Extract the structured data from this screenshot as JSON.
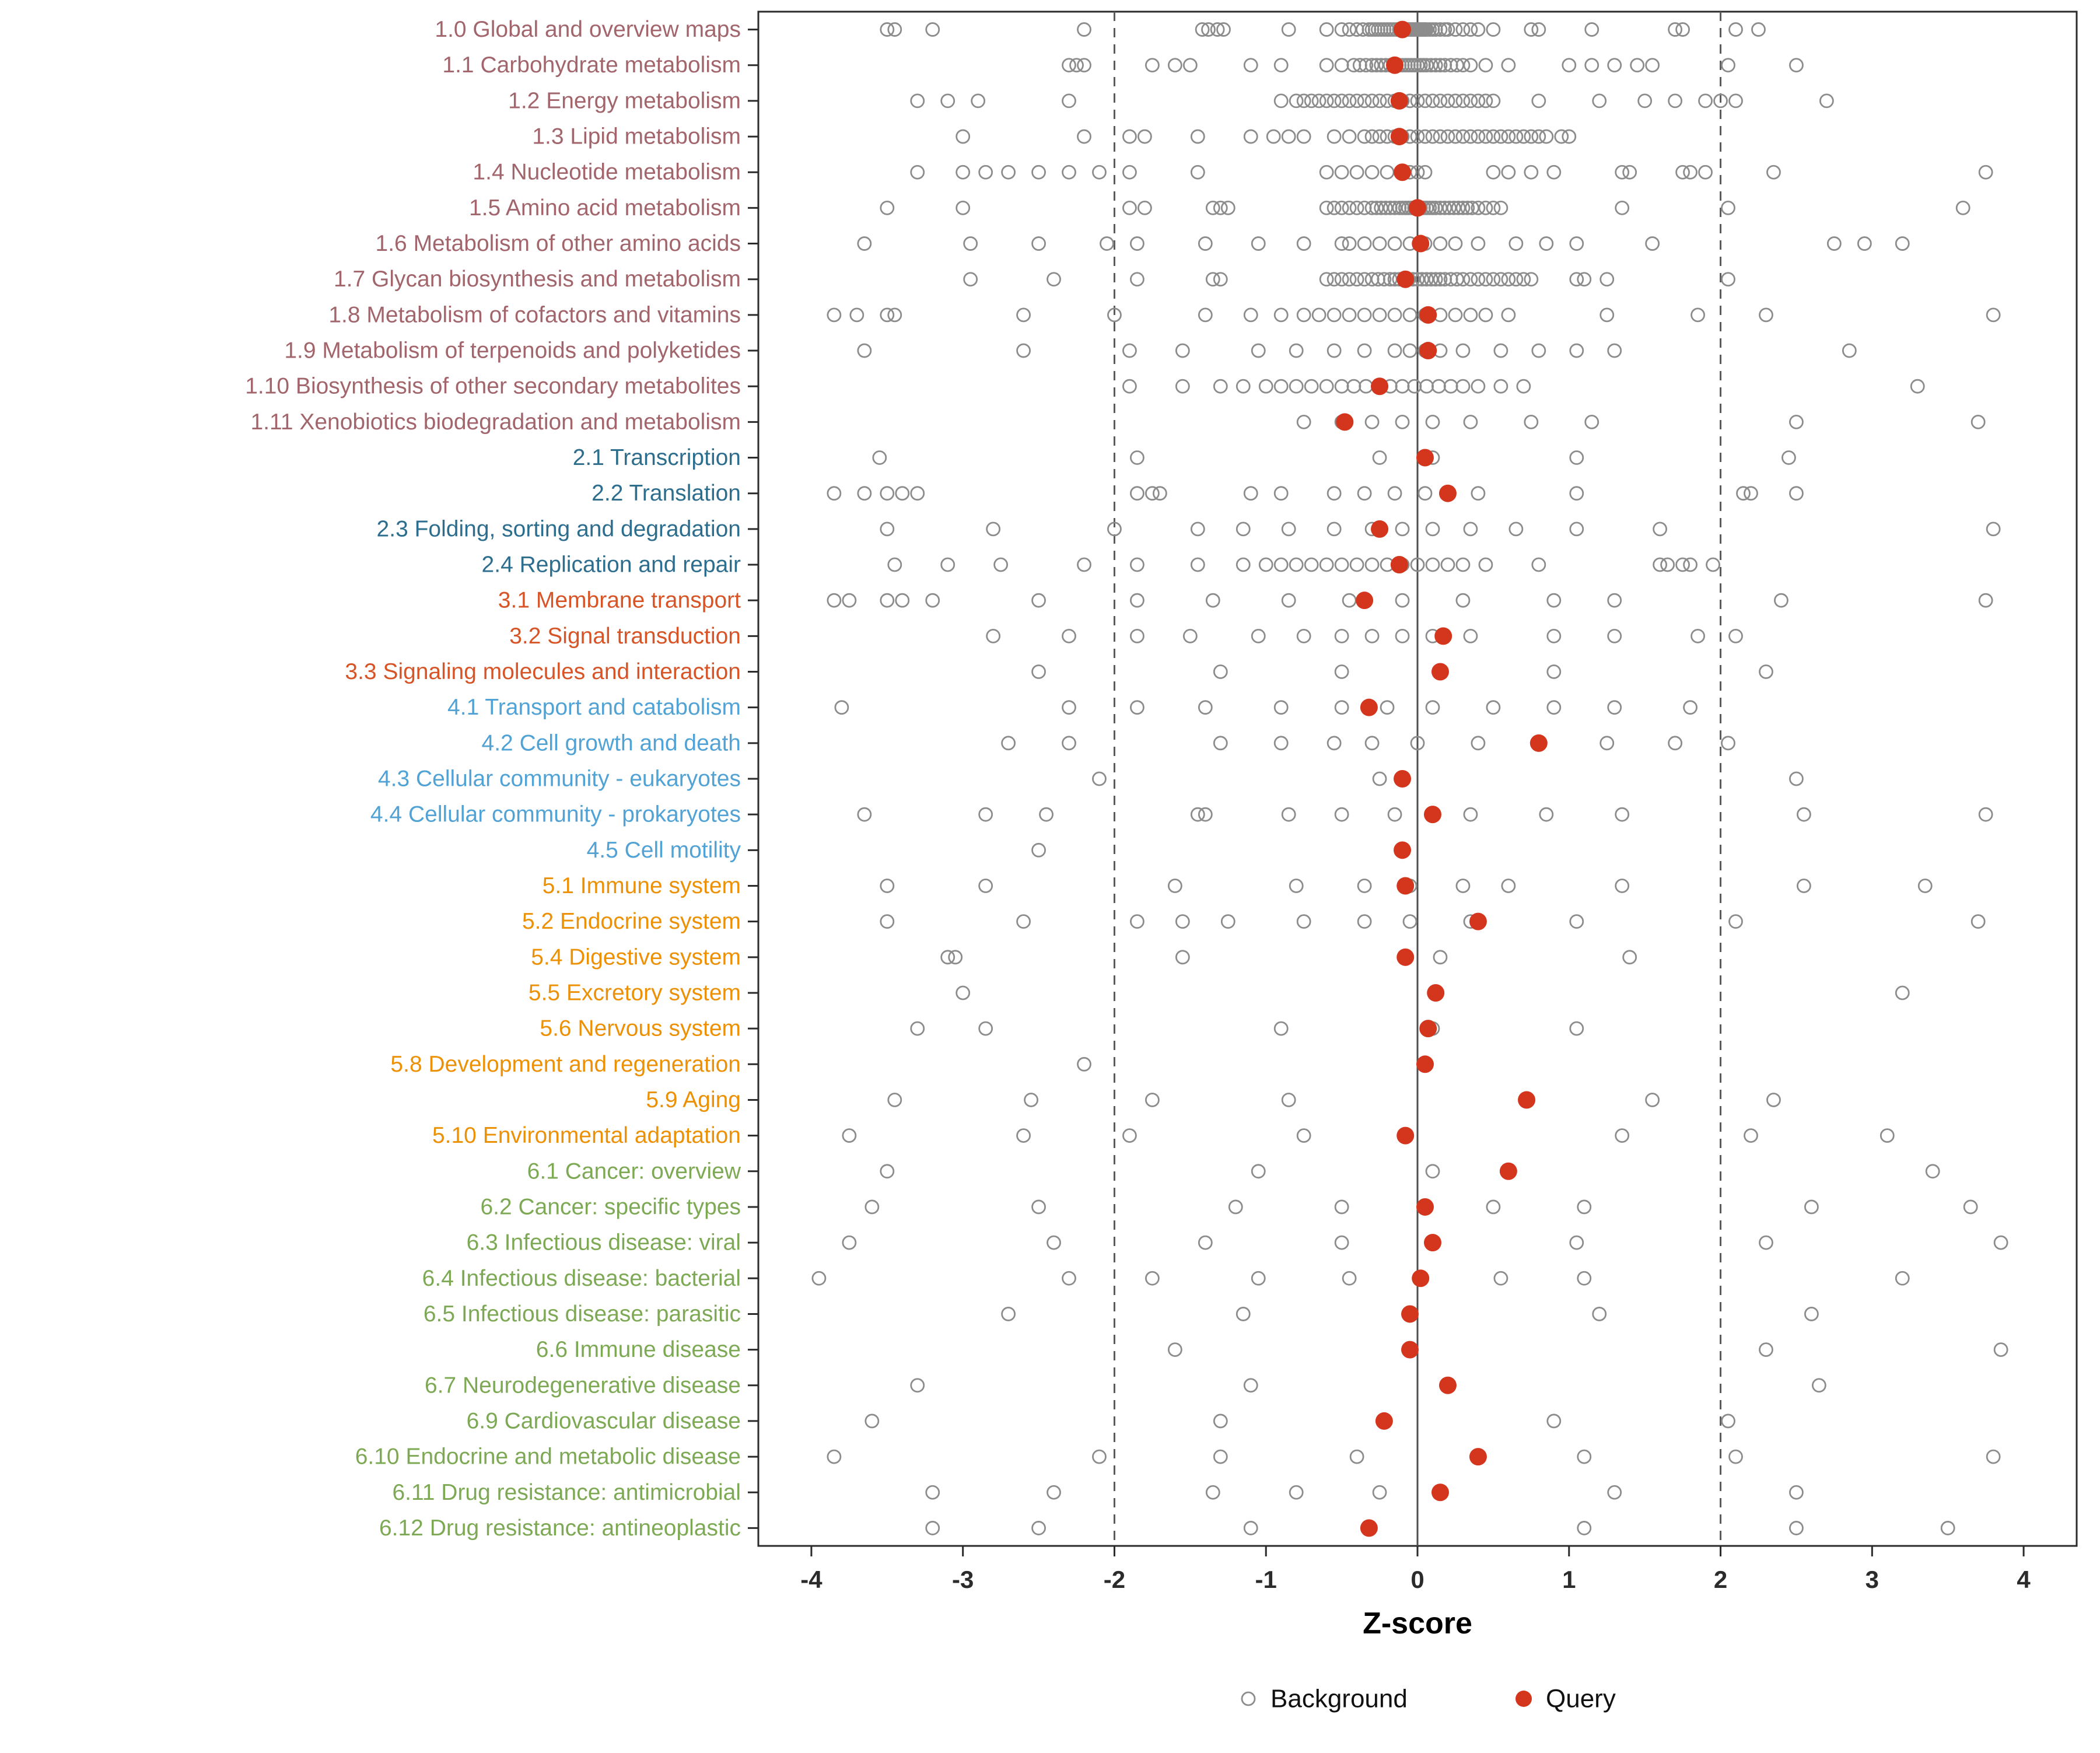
{
  "colors": {
    "background_stroke": "#8C8C8C",
    "query_fill": "#D4361D",
    "panel_border": "#2b2b2b",
    "axis_tick": "#2b2b2b",
    "zero_line": "#4d4d4d",
    "dashed_line": "#5a5a5a",
    "group_metabolism": "#A2656C",
    "group_genetic_info": "#2D6D8E",
    "group_env_info": "#D75426",
    "group_cellular": "#51A2D5",
    "group_organismal": "#EC9106",
    "group_disease": "#7DA954"
  },
  "chart_data": {
    "type": "scatter",
    "title": "",
    "xlabel": "Z-score",
    "ylabel": "",
    "xlim": [
      -4.35,
      4.35
    ],
    "x_ticks": [
      -4,
      -3,
      -2,
      -1,
      0,
      1,
      2,
      3,
      4
    ],
    "reference_lines": {
      "solid": [
        0
      ],
      "dashed": [
        -2,
        2
      ]
    },
    "legend_labels": [
      "Background",
      "Query"
    ],
    "legend_position": "bottom",
    "grid": false,
    "rows": [
      {
        "label": "1.0 Global and overview maps",
        "group": "metabolism",
        "query": -0.1,
        "background": [
          -3.5,
          -3.45,
          -3.2,
          -2.2,
          -1.42,
          -1.38,
          -1.32,
          -1.28,
          -0.85,
          -0.6,
          -0.5,
          -0.45,
          -0.4,
          -0.36,
          -0.32,
          -0.3,
          -0.28,
          -0.26,
          -0.24,
          -0.22,
          -0.2,
          -0.18,
          -0.16,
          -0.14,
          -0.12,
          -0.1,
          -0.08,
          -0.06,
          -0.05,
          -0.04,
          -0.03,
          -0.02,
          -0.01,
          0,
          0.01,
          0.02,
          0.03,
          0.04,
          0.05,
          0.06,
          0.08,
          0.1,
          0.12,
          0.15,
          0.18,
          0.2,
          0.25,
          0.3,
          0.35,
          0.4,
          0.5,
          0.75,
          0.8,
          1.15,
          1.7,
          1.75,
          2.1,
          2.25
        ]
      },
      {
        "label": "1.1 Carbohydrate metabolism",
        "group": "metabolism",
        "query": -0.15,
        "background": [
          -2.3,
          -2.25,
          -2.2,
          -1.75,
          -1.6,
          -1.5,
          -1.1,
          -0.9,
          -0.6,
          -0.5,
          -0.42,
          -0.38,
          -0.34,
          -0.3,
          -0.27,
          -0.24,
          -0.21,
          -0.18,
          -0.15,
          -0.12,
          -0.1,
          -0.08,
          -0.06,
          -0.04,
          -0.02,
          0,
          0.02,
          0.04,
          0.06,
          0.09,
          0.12,
          0.15,
          0.18,
          0.22,
          0.26,
          0.3,
          0.35,
          0.45,
          0.6,
          1.0,
          1.15,
          1.3,
          1.45,
          1.55,
          2.05,
          2.5
        ]
      },
      {
        "label": "1.2 Energy metabolism",
        "group": "metabolism",
        "query": -0.12,
        "background": [
          -3.3,
          -3.1,
          -2.9,
          -2.3,
          -0.9,
          -0.8,
          -0.75,
          -0.7,
          -0.65,
          -0.6,
          -0.55,
          -0.5,
          -0.45,
          -0.4,
          -0.35,
          -0.3,
          -0.25,
          -0.2,
          -0.15,
          -0.1,
          -0.05,
          0,
          0.05,
          0.1,
          0.15,
          0.2,
          0.25,
          0.3,
          0.35,
          0.4,
          0.45,
          0.5,
          0.8,
          1.2,
          1.5,
          1.7,
          1.9,
          2.0,
          2.1,
          2.7
        ]
      },
      {
        "label": "1.3 Lipid metabolism",
        "group": "metabolism",
        "query": -0.12,
        "background": [
          -3.0,
          -2.2,
          -1.9,
          -1.8,
          -1.45,
          -1.1,
          -0.95,
          -0.85,
          -0.75,
          -0.55,
          -0.45,
          -0.35,
          -0.3,
          -0.25,
          -0.2,
          -0.15,
          -0.1,
          -0.05,
          0,
          0.05,
          0.1,
          0.15,
          0.2,
          0.25,
          0.3,
          0.35,
          0.4,
          0.45,
          0.5,
          0.55,
          0.6,
          0.65,
          0.7,
          0.75,
          0.8,
          0.85,
          0.95,
          1.0
        ]
      },
      {
        "label": "1.4 Nucleotide metabolism",
        "group": "metabolism",
        "query": -0.1,
        "background": [
          -3.3,
          -3.0,
          -2.85,
          -2.7,
          -2.5,
          -2.3,
          -2.1,
          -1.9,
          -1.45,
          -0.6,
          -0.5,
          -0.4,
          -0.3,
          -0.2,
          -0.1,
          -0.05,
          0,
          0.05,
          0.5,
          0.6,
          0.75,
          0.9,
          1.35,
          1.4,
          1.75,
          1.8,
          1.9,
          2.35,
          3.75
        ]
      },
      {
        "label": "1.5 Amino acid metabolism",
        "group": "metabolism",
        "query": 0.0,
        "background": [
          -3.5,
          -3.0,
          -1.9,
          -1.8,
          -1.35,
          -1.3,
          -1.25,
          -0.6,
          -0.55,
          -0.5,
          -0.45,
          -0.4,
          -0.35,
          -0.3,
          -0.27,
          -0.24,
          -0.21,
          -0.18,
          -0.15,
          -0.12,
          -0.1,
          -0.08,
          -0.06,
          -0.04,
          -0.02,
          0,
          0.02,
          0.04,
          0.06,
          0.08,
          0.1,
          0.12,
          0.15,
          0.18,
          0.21,
          0.24,
          0.27,
          0.3,
          0.33,
          0.36,
          0.4,
          0.45,
          0.5,
          0.55,
          1.35,
          2.05,
          3.6
        ]
      },
      {
        "label": "1.6 Metabolism of other amino acids",
        "group": "metabolism",
        "query": 0.02,
        "background": [
          -3.65,
          -2.95,
          -2.5,
          -2.05,
          -1.85,
          -1.4,
          -1.05,
          -0.75,
          -0.5,
          -0.45,
          -0.35,
          -0.25,
          -0.15,
          -0.05,
          0.05,
          0.15,
          0.25,
          0.4,
          0.65,
          0.85,
          1.05,
          1.55,
          2.75,
          2.95,
          3.2
        ]
      },
      {
        "label": "1.7 Glycan biosynthesis and metabolism",
        "group": "metabolism",
        "query": -0.08,
        "background": [
          -2.95,
          -2.4,
          -1.85,
          -1.35,
          -1.3,
          -0.6,
          -0.55,
          -0.5,
          -0.45,
          -0.4,
          -0.35,
          -0.3,
          -0.26,
          -0.22,
          -0.18,
          -0.15,
          -0.12,
          -0.09,
          -0.06,
          -0.03,
          0,
          0.03,
          0.06,
          0.09,
          0.12,
          0.15,
          0.18,
          0.22,
          0.26,
          0.3,
          0.35,
          0.4,
          0.45,
          0.5,
          0.55,
          0.6,
          0.65,
          0.7,
          0.75,
          1.05,
          1.1,
          1.25,
          2.05
        ]
      },
      {
        "label": "1.8 Metabolism of cofactors and vitamins",
        "group": "metabolism",
        "query": 0.07,
        "background": [
          -3.85,
          -3.7,
          -3.5,
          -3.45,
          -2.6,
          -2.0,
          -1.4,
          -1.1,
          -0.9,
          -0.75,
          -0.65,
          -0.55,
          -0.45,
          -0.35,
          -0.25,
          -0.15,
          -0.05,
          0.05,
          0.15,
          0.25,
          0.35,
          0.45,
          0.6,
          1.25,
          1.85,
          2.3,
          3.8
        ]
      },
      {
        "label": "1.9 Metabolism of terpenoids and polyketides",
        "group": "metabolism",
        "query": 0.07,
        "background": [
          -3.65,
          -2.6,
          -1.9,
          -1.55,
          -1.05,
          -0.8,
          -0.55,
          -0.35,
          -0.15,
          -0.05,
          0.05,
          0.15,
          0.3,
          0.55,
          0.8,
          1.05,
          1.3,
          2.85
        ]
      },
      {
        "label": "1.10 Biosynthesis of other secondary metabolites",
        "group": "metabolism",
        "query": -0.25,
        "background": [
          -1.9,
          -1.55,
          -1.3,
          -1.15,
          -1.0,
          -0.9,
          -0.8,
          -0.7,
          -0.6,
          -0.5,
          -0.42,
          -0.34,
          -0.26,
          -0.18,
          -0.1,
          -0.02,
          0.06,
          0.14,
          0.22,
          0.3,
          0.4,
          0.55,
          0.7,
          3.3
        ]
      },
      {
        "label": "1.11 Xenobiotics biodegradation and metabolism",
        "group": "metabolism",
        "query": -0.48,
        "background": [
          -0.75,
          -0.5,
          -0.3,
          -0.1,
          0.1,
          0.35,
          0.75,
          1.15,
          2.5,
          3.7
        ]
      },
      {
        "label": "2.1 Transcription",
        "group": "genetic_info",
        "query": 0.05,
        "background": [
          -3.55,
          -1.85,
          -0.25,
          0.1,
          1.05,
          2.45
        ]
      },
      {
        "label": "2.2 Translation",
        "group": "genetic_info",
        "query": 0.2,
        "background": [
          -3.85,
          -3.65,
          -3.5,
          -3.4,
          -3.3,
          -1.85,
          -1.75,
          -1.7,
          -1.1,
          -0.9,
          -0.55,
          -0.35,
          -0.15,
          0.05,
          0.4,
          1.05,
          2.15,
          2.2,
          2.5
        ]
      },
      {
        "label": "2.3 Folding, sorting and degradation",
        "group": "genetic_info",
        "query": -0.25,
        "background": [
          -3.5,
          -2.8,
          -2.0,
          -1.45,
          -1.15,
          -0.85,
          -0.55,
          -0.3,
          -0.1,
          0.1,
          0.35,
          0.65,
          1.05,
          1.6,
          3.8
        ]
      },
      {
        "label": "2.4 Replication and repair",
        "group": "genetic_info",
        "query": -0.12,
        "background": [
          -3.45,
          -3.1,
          -2.75,
          -2.2,
          -1.85,
          -1.45,
          -1.15,
          -1.0,
          -0.9,
          -0.8,
          -0.7,
          -0.6,
          -0.5,
          -0.4,
          -0.3,
          -0.2,
          -0.1,
          0,
          0.1,
          0.2,
          0.3,
          0.45,
          0.8,
          1.6,
          1.65,
          1.75,
          1.8,
          1.95
        ]
      },
      {
        "label": "3.1 Membrane transport",
        "group": "env_info",
        "query": -0.35,
        "background": [
          -3.85,
          -3.75,
          -3.5,
          -3.4,
          -3.2,
          -2.5,
          -1.85,
          -1.35,
          -0.85,
          -0.45,
          -0.1,
          0.3,
          0.9,
          1.3,
          2.4,
          3.75
        ]
      },
      {
        "label": "3.2 Signal transduction",
        "group": "env_info",
        "query": 0.17,
        "background": [
          -2.8,
          -2.3,
          -1.85,
          -1.5,
          -1.05,
          -0.75,
          -0.5,
          -0.3,
          -0.1,
          0.1,
          0.35,
          0.9,
          1.3,
          1.85,
          2.1
        ]
      },
      {
        "label": "3.3 Signaling molecules and interaction",
        "group": "env_info",
        "query": 0.15,
        "background": [
          -2.5,
          -1.3,
          -0.5,
          0.9,
          2.3
        ]
      },
      {
        "label": "4.1 Transport and catabolism",
        "group": "cellular",
        "query": -0.32,
        "background": [
          -3.8,
          -2.3,
          -1.85,
          -1.4,
          -0.9,
          -0.5,
          -0.2,
          0.1,
          0.5,
          0.9,
          1.3,
          1.8
        ]
      },
      {
        "label": "4.2 Cell growth and death",
        "group": "cellular",
        "query": 0.8,
        "background": [
          -2.7,
          -2.3,
          -1.3,
          -0.9,
          -0.55,
          -0.3,
          0,
          0.4,
          1.25,
          1.7,
          2.05
        ]
      },
      {
        "label": "4.3 Cellular community - eukaryotes",
        "group": "cellular",
        "query": -0.1,
        "background": [
          -2.1,
          -0.25,
          2.5
        ]
      },
      {
        "label": "4.4 Cellular community - prokaryotes",
        "group": "cellular",
        "query": 0.1,
        "background": [
          -3.65,
          -2.85,
          -2.45,
          -1.45,
          -1.4,
          -0.85,
          -0.5,
          -0.15,
          0.35,
          0.85,
          1.35,
          2.55,
          3.75
        ]
      },
      {
        "label": "4.5 Cell motility",
        "group": "cellular",
        "query": -0.1,
        "background": [
          -2.5,
          -0.1
        ]
      },
      {
        "label": "5.1 Immune system",
        "group": "organismal",
        "query": -0.08,
        "background": [
          -3.5,
          -2.85,
          -1.6,
          -0.8,
          -0.35,
          -0.05,
          0.3,
          0.6,
          1.35,
          2.55,
          3.35
        ]
      },
      {
        "label": "5.2 Endocrine system",
        "group": "organismal",
        "query": 0.4,
        "background": [
          -3.5,
          -2.6,
          -1.85,
          -1.55,
          -1.25,
          -0.75,
          -0.35,
          -0.05,
          0.35,
          1.05,
          2.1,
          3.7
        ]
      },
      {
        "label": "5.4 Digestive system",
        "group": "organismal",
        "query": -0.08,
        "background": [
          -3.1,
          -3.05,
          -1.55,
          0.15,
          1.4
        ]
      },
      {
        "label": "5.5 Excretory system",
        "group": "organismal",
        "query": 0.12,
        "background": [
          -3.0,
          3.2
        ]
      },
      {
        "label": "5.6 Nervous system",
        "group": "organismal",
        "query": 0.07,
        "background": [
          -3.3,
          -2.85,
          -0.9,
          0.1,
          1.05
        ]
      },
      {
        "label": "5.8 Development and regeneration",
        "group": "organismal",
        "query": 0.05,
        "background": [
          -2.2,
          0.05
        ]
      },
      {
        "label": "5.9 Aging",
        "group": "organismal",
        "query": 0.72,
        "background": [
          -3.45,
          -2.55,
          -1.75,
          -0.85,
          1.55,
          2.35
        ]
      },
      {
        "label": "5.10 Environmental adaptation",
        "group": "organismal",
        "query": -0.08,
        "background": [
          -3.75,
          -2.6,
          -1.9,
          -0.75,
          1.35,
          2.2,
          3.1
        ]
      },
      {
        "label": "6.1 Cancer: overview",
        "group": "disease",
        "query": 0.6,
        "background": [
          -3.5,
          -1.05,
          0.1,
          3.4
        ]
      },
      {
        "label": "6.2 Cancer: specific types",
        "group": "disease",
        "query": 0.05,
        "background": [
          -3.6,
          -2.5,
          -1.2,
          -0.5,
          0.5,
          1.1,
          2.6,
          3.65
        ]
      },
      {
        "label": "6.3 Infectious disease: viral",
        "group": "disease",
        "query": 0.1,
        "background": [
          -3.75,
          -2.4,
          -1.4,
          -0.5,
          1.05,
          2.3,
          3.85
        ]
      },
      {
        "label": "6.4 Infectious disease: bacterial",
        "group": "disease",
        "query": 0.02,
        "background": [
          -3.95,
          -2.3,
          -1.75,
          -1.05,
          -0.45,
          0.55,
          1.1,
          3.2
        ]
      },
      {
        "label": "6.5 Infectious disease: parasitic",
        "group": "disease",
        "query": -0.05,
        "background": [
          -2.7,
          -1.15,
          1.2,
          2.6
        ]
      },
      {
        "label": "6.6 Immune disease",
        "group": "disease",
        "query": -0.05,
        "background": [
          -1.6,
          2.3,
          3.85
        ]
      },
      {
        "label": "6.7 Neurodegenerative disease",
        "group": "disease",
        "query": 0.2,
        "background": [
          -3.3,
          -1.1,
          2.65
        ]
      },
      {
        "label": "6.9 Cardiovascular disease",
        "group": "disease",
        "query": -0.22,
        "background": [
          -3.6,
          -1.3,
          0.9,
          2.05
        ]
      },
      {
        "label": "6.10 Endocrine and metabolic disease",
        "group": "disease",
        "query": 0.4,
        "background": [
          -3.85,
          -2.1,
          -1.3,
          -0.4,
          1.1,
          2.1,
          3.8
        ]
      },
      {
        "label": "6.11 Drug resistance: antimicrobial",
        "group": "disease",
        "query": 0.15,
        "background": [
          -3.2,
          -2.4,
          -1.35,
          -0.8,
          -0.25,
          1.3,
          2.5
        ]
      },
      {
        "label": "6.12 Drug resistance: antineoplastic",
        "group": "disease",
        "query": -0.32,
        "background": [
          -3.2,
          -2.5,
          -1.1,
          1.1,
          2.5,
          3.5
        ]
      }
    ]
  }
}
